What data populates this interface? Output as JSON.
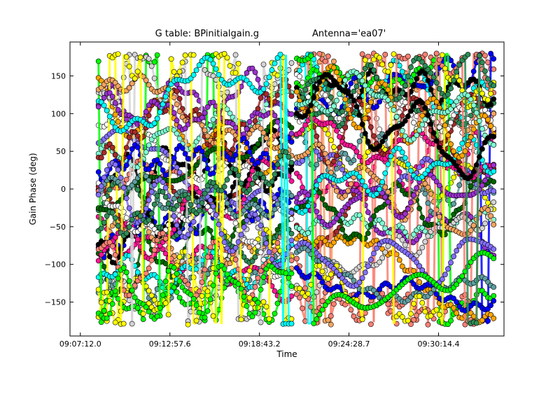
{
  "chart_data": {
    "type": "scatter",
    "title_parts": [
      "G table: BPinitialgain.g",
      "Antenna='ea07'"
    ],
    "xlabel": "Time",
    "ylabel": "Gain Phase (deg)",
    "x_ticks": [
      "09:07:12.0",
      "09:12:57.6",
      "09:18:43.2",
      "09:24:28.7",
      "09:30:14.4"
    ],
    "x_tick_seconds": [
      0,
      345.6,
      691.2,
      1036.7,
      1382.4
    ],
    "xlim_seconds": [
      -40,
      1635
    ],
    "y_ticks": [
      150,
      100,
      50,
      0,
      -50,
      -100,
      -150
    ],
    "ylim": [
      -195,
      195
    ],
    "segments_seconds": [
      [
        70,
        815
      ],
      [
        835,
        1595
      ]
    ],
    "grid": false,
    "legend": "none",
    "series_colors": [
      "#000000",
      "#00ffff",
      "#9b30d0",
      "#a52a2a",
      "#ffa500",
      "#ffff00",
      "#f4a460",
      "#006400",
      "#00ff00",
      "#0000ff",
      "#ff1493",
      "#7fffd4",
      "#8470ff",
      "#fa8072",
      "#d3d3d3",
      "#2e8b57",
      "#5f9ea0",
      "#ffffff"
    ]
  }
}
